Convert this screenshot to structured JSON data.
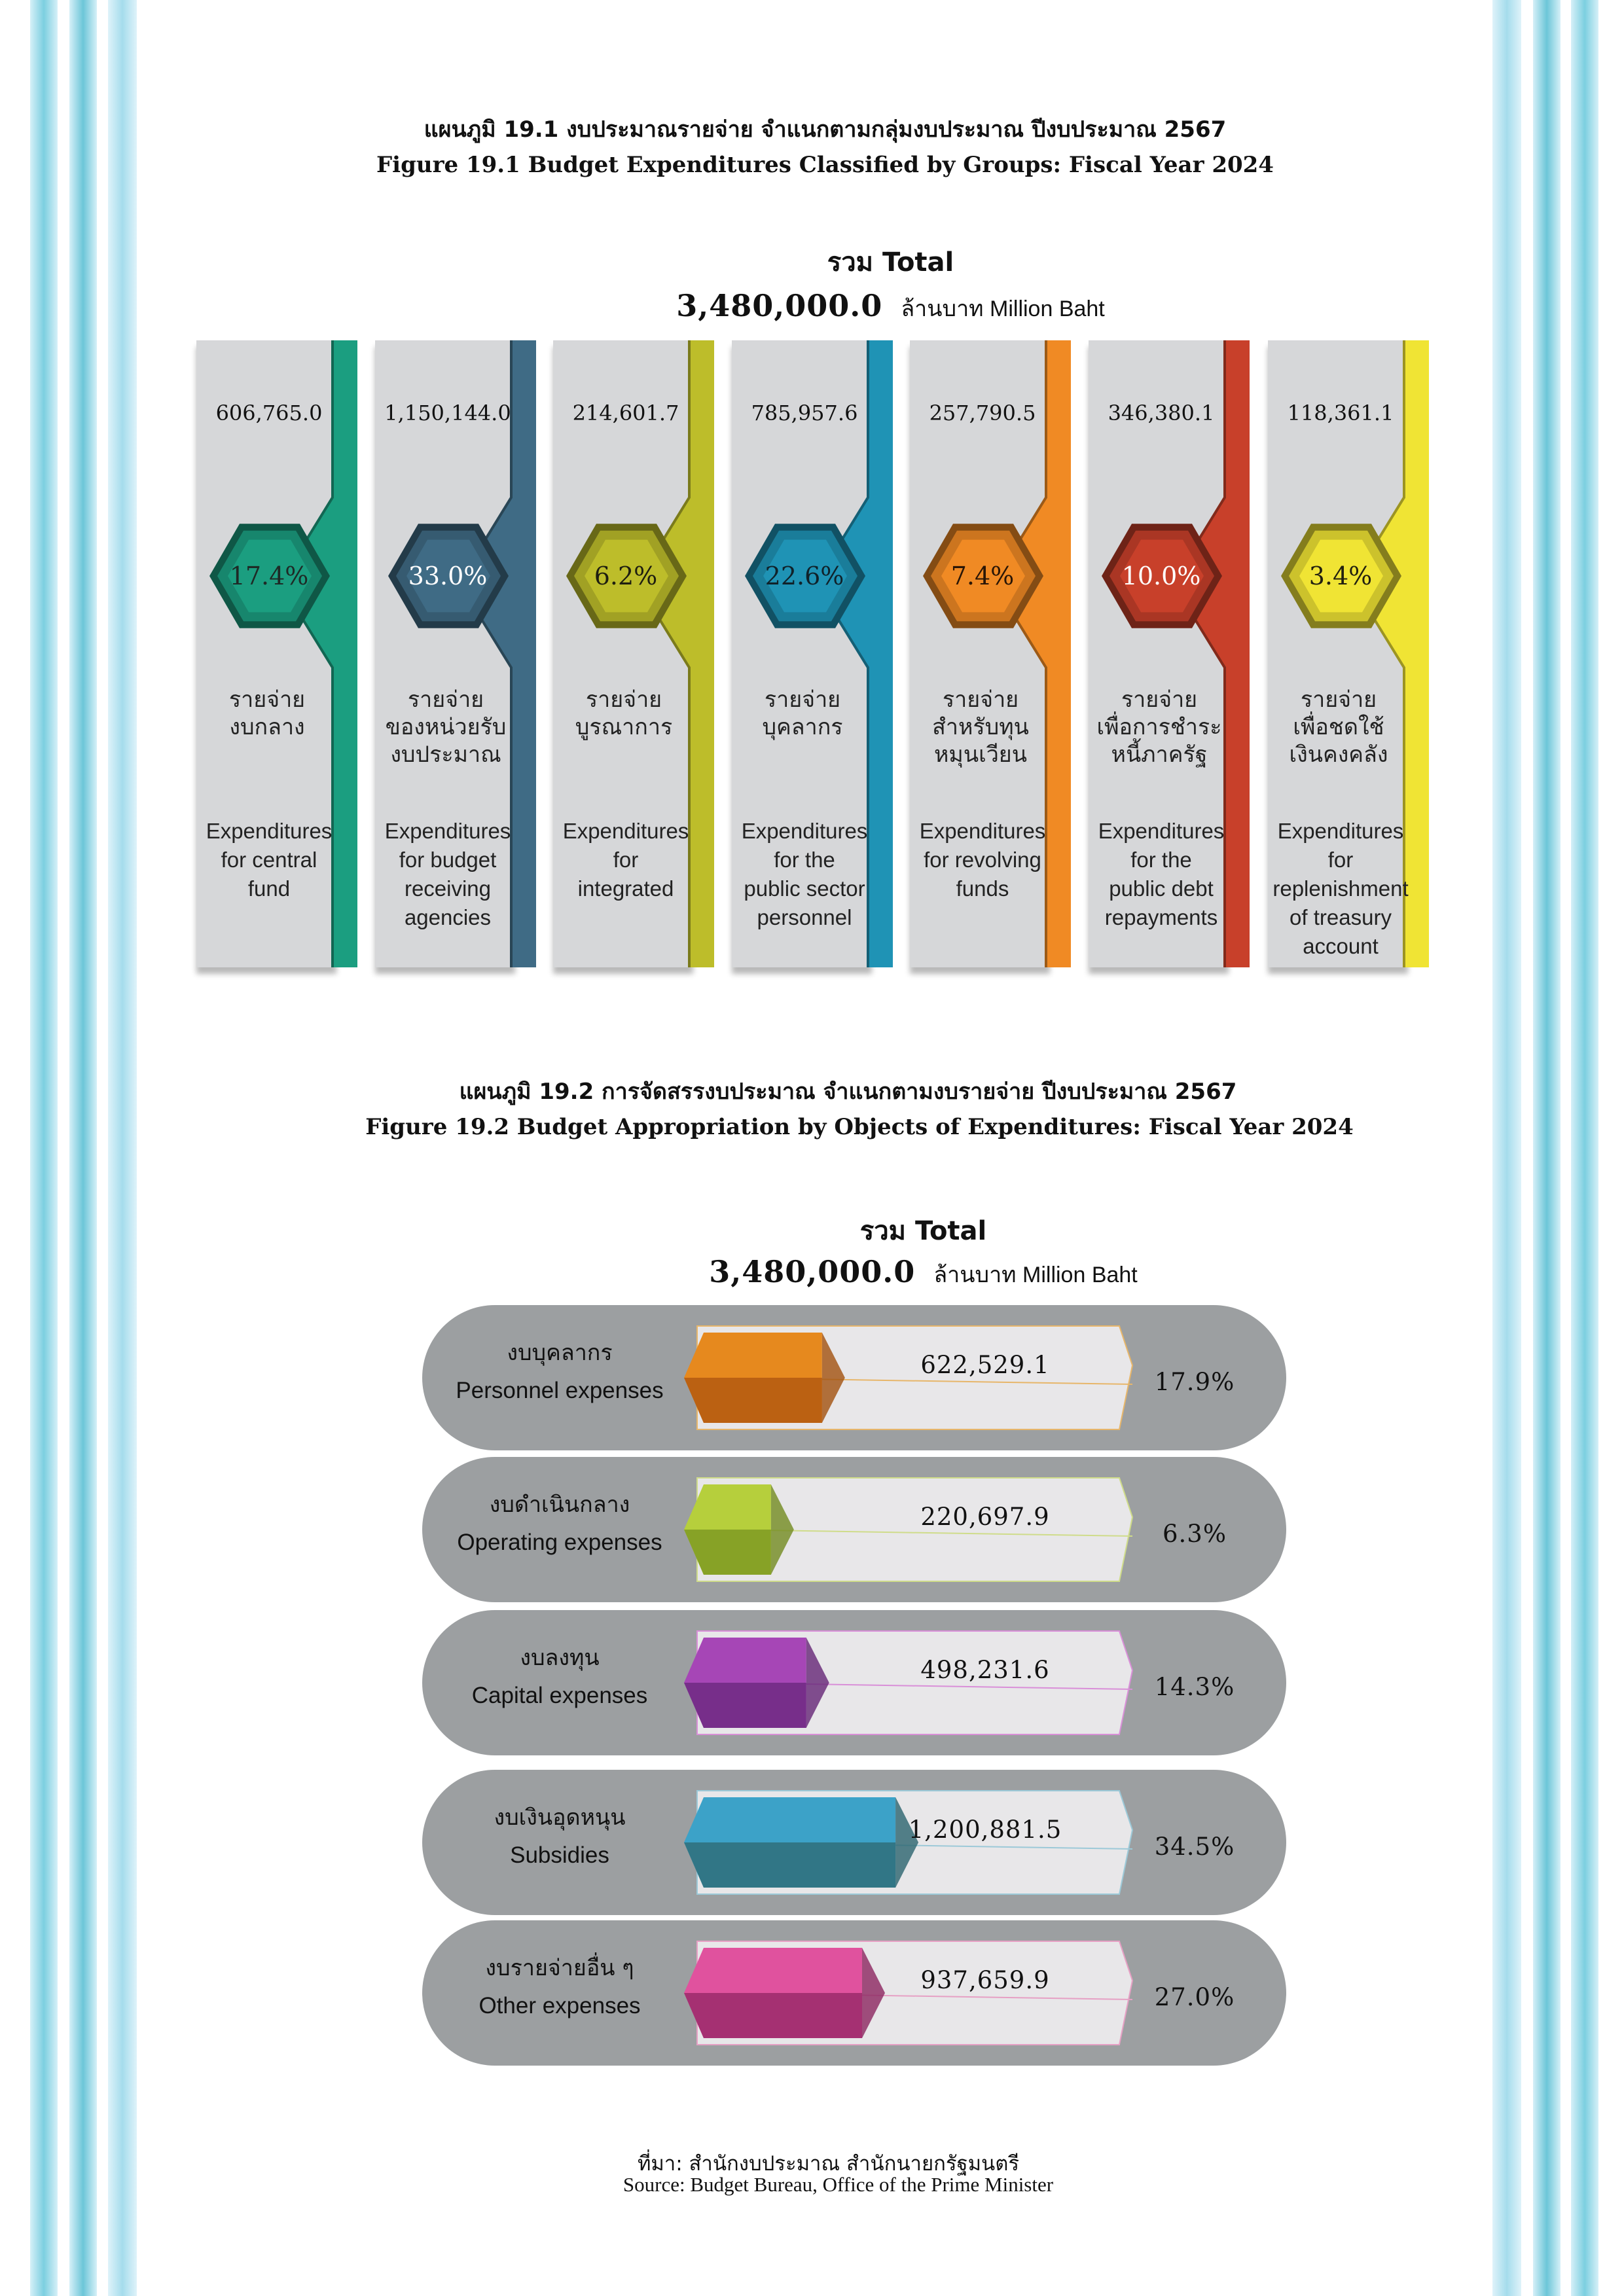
{
  "colors": {
    "stripe_light": "#b9e3f1",
    "stripe_dark": "#6fc7d8",
    "pill_bg": "#9c9fa1",
    "panel_bg": "#d6d7d9"
  },
  "figure1": {
    "title_th": "แผนภูมิ 19.1 งบประมาณรายจ่าย จำแนกตามกลุ่มงบประมาณ ปีงบประมาณ 2567",
    "title_en": "Figure 19.1 Budget Expenditures Classified by Groups: Fiscal Year 2024",
    "total_label": "รวม Total",
    "total_value": "3,480,000.0",
    "total_unit": "ล้านบาท Million Baht"
  },
  "figure2": {
    "title_th": "แผนภูมิ 19.2 การจัดสรรงบประมาณ จำแนกตามงบรายจ่าย ปีงบประมาณ 2567",
    "title_en": "Figure 19.2 Budget Appropriation by Objects of Expenditures: Fiscal Year 2024",
    "total_label": "รวม Total",
    "total_value": "3,480,000.0",
    "total_unit": "ล้านบาท Million Baht"
  },
  "source": {
    "th": "ที่มา: สำนักงบประมาณ สำนักนายกรัฐมนตรี",
    "en": "Source: Budget Bureau, Office of the Prime Minister"
  },
  "chart_data": [
    {
      "type": "bar",
      "title": "Figure 19.1 Budget Expenditures Classified by Groups: Fiscal Year 2024",
      "unit": "Million Baht",
      "total": 3480000.0,
      "categories": [
        {
          "th": [
            "รายจ่าย",
            "งบกลาง"
          ],
          "en": [
            "Expenditures",
            "for central",
            "fund"
          ],
          "value": 606765.0,
          "value_label": "606,765.0",
          "percent": 17.4,
          "percent_label": "17.4%",
          "color": "#1b9e80",
          "hex_text": "#1e2a26"
        },
        {
          "th": [
            "รายจ่าย",
            "ของหน่วยรับ",
            "งบประมาณ"
          ],
          "en": [
            "Expenditures",
            "for budget",
            "receiving",
            "agencies"
          ],
          "value": 1150144.0,
          "value_label": "1,150,144.0",
          "percent": 33.0,
          "percent_label": "33.0%",
          "color": "#3f6b85",
          "hex_text": "#ffffff"
        },
        {
          "th": [
            "รายจ่าย",
            "บูรณาการ"
          ],
          "en": [
            "Expenditures",
            "for",
            "integrated"
          ],
          "value": 214601.7,
          "value_label": "214,601.7",
          "percent": 6.2,
          "percent_label": "6.2%",
          "color": "#bdbd2a",
          "hex_text": "#1e1e10"
        },
        {
          "th": [
            "รายจ่าย",
            "บุคลากร"
          ],
          "en": [
            "Expenditures",
            "for the",
            "public sector",
            "personnel"
          ],
          "value": 785957.6,
          "value_label": "785,957.6",
          "percent": 22.6,
          "percent_label": "22.6%",
          "color": "#1f93b5",
          "hex_text": "#10222a"
        },
        {
          "th": [
            "รายจ่าย",
            "สำหรับทุน",
            "หมุนเวียน"
          ],
          "en": [
            "Expenditures",
            "for revolving",
            "funds"
          ],
          "value": 257790.5,
          "value_label": "257,790.5",
          "percent": 7.4,
          "percent_label": "7.4%",
          "color": "#f08a24",
          "hex_text": "#2a1606"
        },
        {
          "th": [
            "รายจ่าย",
            "เพื่อการชำระ",
            "หนี้ภาครัฐ"
          ],
          "en": [
            "Expenditures",
            "for the",
            "public debt",
            "repayments"
          ],
          "value": 346380.1,
          "value_label": "346,380.1",
          "percent": 10.0,
          "percent_label": "10.0%",
          "color": "#c8402a",
          "hex_text": "#ffffff"
        },
        {
          "th": [
            "รายจ่าย",
            "เพื่อชดใช้",
            "เงินคงคลัง"
          ],
          "en": [
            "Expenditures",
            "for",
            "replenishment",
            "of treasury",
            "account"
          ],
          "value": 118361.1,
          "value_label": "118,361.1",
          "percent": 3.4,
          "percent_label": "3.4%",
          "color": "#f0e434",
          "hex_text": "#222010"
        }
      ]
    },
    {
      "type": "bar",
      "title": "Figure 19.2 Budget Appropriation by Objects of Expenditures: Fiscal Year 2024",
      "unit": "Million Baht",
      "total": 3480000.0,
      "categories": [
        {
          "th": "งบบุคลากร",
          "en": "Personnel expenses",
          "value": 622529.1,
          "value_label": "622,529.1",
          "percent": 17.9,
          "percent_label": "17.9%",
          "color": "#e6891e",
          "color2": "#b35a10",
          "outline": "#e7b66a"
        },
        {
          "th": "งบดำเนินกลาง",
          "en": "Operating expenses",
          "value": 220697.9,
          "value_label": "220,697.9",
          "percent": 6.3,
          "percent_label": "6.3%",
          "color": "#b6cf3c",
          "color2": "#7f9a22",
          "outline": "#cfdc8a"
        },
        {
          "th": "งบลงทุน",
          "en": "Capital expenses",
          "value": 498231.6,
          "value_label": "498,231.6",
          "percent": 14.3,
          "percent_label": "14.3%",
          "color": "#a646b6",
          "color2": "#6f2a82",
          "outline": "#d98fd8"
        },
        {
          "th": "งบเงินอุดหนุน",
          "en": "Subsidies",
          "value": 1200881.5,
          "value_label": "1,200,881.5",
          "percent": 34.5,
          "percent_label": "34.5%",
          "color": "#3ca2c8",
          "color2": "#2f6f7a",
          "outline": "#9cc9d8"
        },
        {
          "th": "งบรายจ่ายอื่น ๆ",
          "en": "Other expenses",
          "value": 937659.9,
          "value_label": "937,659.9",
          "percent": 27.0,
          "percent_label": "27.0%",
          "color": "#e0529e",
          "color2": "#9a2a6a",
          "outline": "#e6a0c4"
        }
      ]
    }
  ]
}
